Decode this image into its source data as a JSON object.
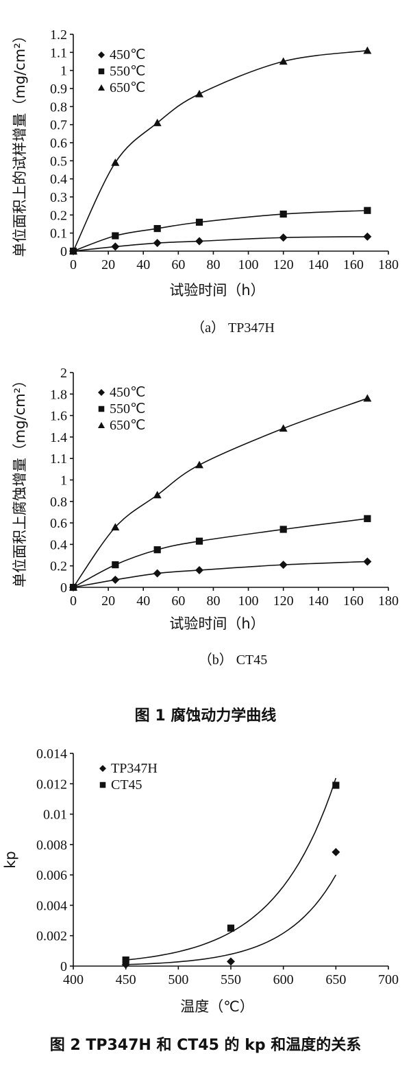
{
  "figure1": {
    "caption": "图 1    腐蚀动力学曲线"
  },
  "figure2": {
    "caption": "图 2    TP347H 和 CT45 的 kp 和温度的关系"
  },
  "chart_data": [
    {
      "type": "scatter",
      "subcaption": "（a） TP347H",
      "xlabel": "试验时间（h）",
      "ylabel": "单位面积上的试样增量（mg/cm²）",
      "xlim": [
        0,
        180
      ],
      "ylim": [
        0,
        1.2
      ],
      "x_ticks": [
        "0",
        "20",
        "40",
        "60",
        "80",
        "100",
        "120",
        "140",
        "160",
        "180"
      ],
      "y_ticks": [
        "0",
        "0.1",
        "0.2",
        "0.3",
        "0.4",
        "0.5",
        "0.6",
        "0.7",
        "0.8",
        "0.9",
        "1",
        "1.1",
        "1.2"
      ],
      "legend_position": "top-left",
      "trendlines": true,
      "series": [
        {
          "name": "450℃",
          "marker": "diamond",
          "x": [
            0,
            24,
            48,
            72,
            120,
            168
          ],
          "y": [
            0,
            0.025,
            0.045,
            0.055,
            0.075,
            0.08
          ]
        },
        {
          "name": "550℃",
          "marker": "square",
          "x": [
            0,
            24,
            48,
            72,
            120,
            168
          ],
          "y": [
            0,
            0.085,
            0.125,
            0.16,
            0.205,
            0.225
          ]
        },
        {
          "name": "650℃",
          "marker": "triangle",
          "x": [
            0,
            24,
            48,
            72,
            120,
            168
          ],
          "y": [
            0,
            0.49,
            0.71,
            0.87,
            1.05,
            1.11
          ]
        }
      ]
    },
    {
      "type": "scatter",
      "subcaption": "（b） CT45",
      "xlabel": "试验时间（h）",
      "ylabel": "单位面积上腐蚀增量（mg/cm²）",
      "xlim": [
        0,
        180
      ],
      "ylim": [
        0,
        2
      ],
      "x_ticks": [
        "0",
        "20",
        "40",
        "60",
        "80",
        "100",
        "120",
        "140",
        "160",
        "180"
      ],
      "y_ticks": [
        "0",
        "0.2",
        "0.4",
        "0.6",
        "0.8",
        "1",
        "1.1",
        "1.4",
        "1.6",
        "1.8",
        "2"
      ],
      "legend_position": "top-left",
      "trendlines": true,
      "series": [
        {
          "name": "450℃",
          "marker": "diamond",
          "x": [
            0,
            24,
            48,
            72,
            120,
            168
          ],
          "y": [
            0,
            0.07,
            0.13,
            0.16,
            0.21,
            0.24
          ]
        },
        {
          "name": "550℃",
          "marker": "square",
          "x": [
            0,
            24,
            48,
            72,
            120,
            168
          ],
          "y": [
            0,
            0.21,
            0.35,
            0.43,
            0.54,
            0.64
          ]
        },
        {
          "name": "650℃",
          "marker": "triangle",
          "x": [
            0,
            24,
            48,
            72,
            120,
            168
          ],
          "y": [
            0,
            0.56,
            0.86,
            1.14,
            1.48,
            1.76
          ]
        }
      ]
    },
    {
      "type": "scatter",
      "xlabel": "温度（℃）",
      "ylabel": "kp",
      "xlim": [
        400,
        700
      ],
      "ylim": [
        0,
        0.014
      ],
      "x_ticks": [
        "400",
        "450",
        "500",
        "550",
        "600",
        "650",
        "700"
      ],
      "y_ticks": [
        "0",
        "0.002",
        "0.004",
        "0.006",
        "0.008",
        "0.01",
        "0.012",
        "0.014"
      ],
      "legend_position": "top-left",
      "trendlines": true,
      "series": [
        {
          "name": "TP347H",
          "marker": "diamond",
          "x": [
            450,
            550,
            650
          ],
          "y": [
            0.0001,
            0.0003,
            0.0075
          ]
        },
        {
          "name": "CT45",
          "marker": "square",
          "x": [
            450,
            550,
            650
          ],
          "y": [
            0.0004,
            0.0025,
            0.0119
          ]
        }
      ]
    }
  ]
}
